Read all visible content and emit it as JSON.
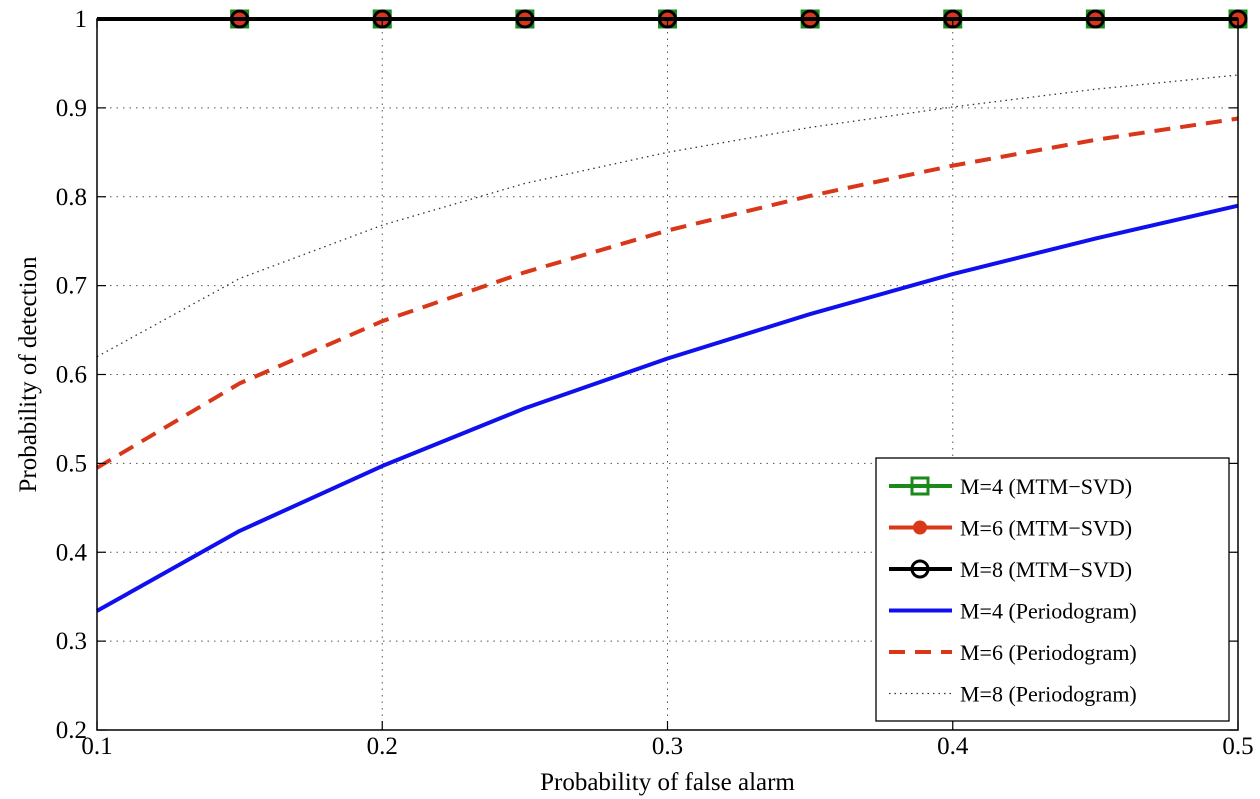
{
  "chart_data": {
    "type": "line",
    "title": "",
    "xlabel": "Probability of false alarm",
    "ylabel": "Probability of detection",
    "xlim": [
      0.1,
      0.5
    ],
    "ylim": [
      0.2,
      1.0
    ],
    "xticks": [
      0.1,
      0.2,
      0.3,
      0.4,
      0.5
    ],
    "xtick_labels": [
      "0.1",
      "0.2",
      "0.3",
      "0.4",
      "0.5"
    ],
    "yticks": [
      0.2,
      0.3,
      0.4,
      0.5,
      0.6,
      0.7,
      0.8,
      0.9,
      1.0
    ],
    "ytick_labels": [
      "0.2",
      "0.3",
      "0.4",
      "0.5",
      "0.6",
      "0.7",
      "0.8",
      "0.9",
      "1"
    ],
    "grid": true,
    "legend_position": "bottom-right",
    "series": [
      {
        "name": "M=4 (MTM−SVD)",
        "color": "#1a8a1a",
        "line_style": "solid",
        "marker": "square",
        "x": [
          0.1,
          0.15,
          0.2,
          0.25,
          0.3,
          0.35,
          0.4,
          0.45,
          0.5
        ],
        "y": [
          1,
          1,
          1,
          1,
          1,
          1,
          1,
          1,
          1
        ]
      },
      {
        "name": "M=6 (MTM−SVD)",
        "color": "#d9361a",
        "line_style": "solid",
        "marker": "dot",
        "x": [
          0.1,
          0.15,
          0.2,
          0.25,
          0.3,
          0.35,
          0.4,
          0.45,
          0.5
        ],
        "y": [
          1,
          1,
          1,
          1,
          1,
          1,
          1,
          1,
          1
        ]
      },
      {
        "name": "M=8 (MTM−SVD)",
        "color": "#000000",
        "line_style": "solid",
        "marker": "circle",
        "x": [
          0.1,
          0.15,
          0.2,
          0.25,
          0.3,
          0.35,
          0.4,
          0.45,
          0.5
        ],
        "y": [
          1,
          1,
          1,
          1,
          1,
          1,
          1,
          1,
          1
        ]
      },
      {
        "name": "M=4 (Periodogram)",
        "color": "#1010ee",
        "line_style": "solid",
        "marker": "none",
        "x": [
          0.1,
          0.15,
          0.2,
          0.25,
          0.3,
          0.35,
          0.4,
          0.45,
          0.5
        ],
        "y": [
          0.334,
          0.424,
          0.497,
          0.562,
          0.618,
          0.668,
          0.713,
          0.753,
          0.79
        ]
      },
      {
        "name": "M=6 (Periodogram)",
        "color": "#d9361a",
        "line_style": "dashed",
        "marker": "none",
        "x": [
          0.1,
          0.15,
          0.2,
          0.25,
          0.3,
          0.35,
          0.4,
          0.45,
          0.5
        ],
        "y": [
          0.495,
          0.59,
          0.66,
          0.715,
          0.762,
          0.801,
          0.835,
          0.864,
          0.888
        ]
      },
      {
        "name": "M=8 (Periodogram)",
        "color": "#333333",
        "line_style": "dotted",
        "marker": "none",
        "x": [
          0.1,
          0.15,
          0.2,
          0.25,
          0.3,
          0.35,
          0.4,
          0.45,
          0.5
        ],
        "y": [
          0.62,
          0.708,
          0.768,
          0.815,
          0.85,
          0.878,
          0.901,
          0.921,
          0.937
        ]
      }
    ]
  }
}
